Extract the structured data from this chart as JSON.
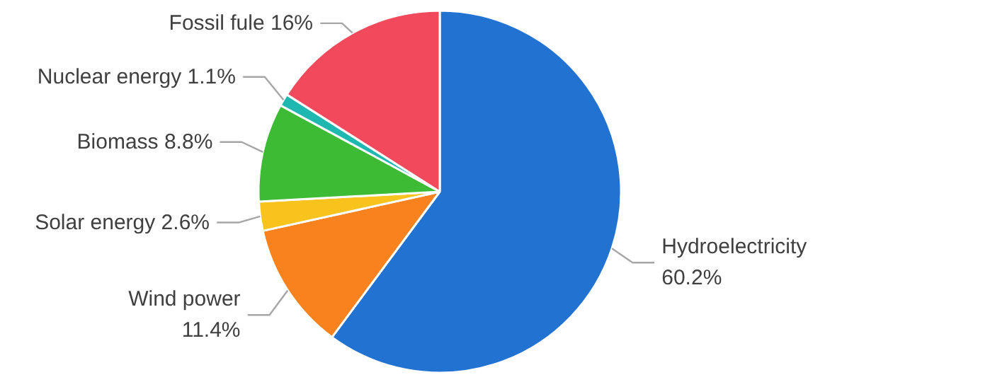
{
  "chart_data": {
    "type": "pie",
    "categories": [
      "Hydroelectricity",
      "Wind power",
      "Solar energy",
      "Biomass",
      "Nuclear energy",
      "Fossil fule"
    ],
    "values": [
      60.2,
      11.4,
      2.6,
      8.8,
      1.1,
      16
    ],
    "colors": [
      "#2272d2",
      "#f7821e",
      "#f8c31c",
      "#3dbb34",
      "#1eb8b0",
      "#f2495c"
    ],
    "value_labels": [
      "60.2%",
      "11.4%",
      "2.6%",
      "8.8%",
      "1.1%",
      "16%"
    ]
  }
}
